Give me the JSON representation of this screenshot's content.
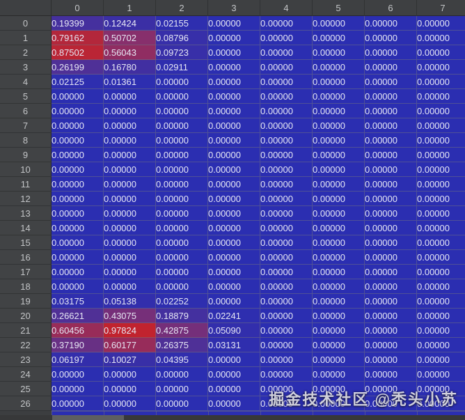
{
  "table": {
    "corner_label": "",
    "columns": [
      "0",
      "1",
      "2",
      "3",
      "4",
      "5",
      "6",
      "7"
    ],
    "decimals": 5,
    "rows": [
      {
        "index": "0",
        "values": [
          0.19399,
          0.12424,
          0.02155,
          0.0,
          0.0,
          0.0,
          0.0,
          0.0
        ]
      },
      {
        "index": "1",
        "values": [
          0.79162,
          0.50702,
          0.08796,
          0.0,
          0.0,
          0.0,
          0.0,
          0.0
        ]
      },
      {
        "index": "2",
        "values": [
          0.87502,
          0.56043,
          0.09723,
          0.0,
          0.0,
          0.0,
          0.0,
          0.0
        ]
      },
      {
        "index": "3",
        "values": [
          0.26199,
          0.1678,
          0.02911,
          0.0,
          0.0,
          0.0,
          0.0,
          0.0
        ]
      },
      {
        "index": "4",
        "values": [
          0.02125,
          0.01361,
          0.0,
          0.0,
          0.0,
          0.0,
          0.0,
          0.0
        ]
      },
      {
        "index": "5",
        "values": [
          0.0,
          0.0,
          0.0,
          0.0,
          0.0,
          0.0,
          0.0,
          0.0
        ]
      },
      {
        "index": "6",
        "values": [
          0.0,
          0.0,
          0.0,
          0.0,
          0.0,
          0.0,
          0.0,
          0.0
        ]
      },
      {
        "index": "7",
        "values": [
          0.0,
          0.0,
          0.0,
          0.0,
          0.0,
          0.0,
          0.0,
          0.0
        ]
      },
      {
        "index": "8",
        "values": [
          0.0,
          0.0,
          0.0,
          0.0,
          0.0,
          0.0,
          0.0,
          0.0
        ]
      },
      {
        "index": "9",
        "values": [
          0.0,
          0.0,
          0.0,
          0.0,
          0.0,
          0.0,
          0.0,
          0.0
        ]
      },
      {
        "index": "10",
        "values": [
          0.0,
          0.0,
          0.0,
          0.0,
          0.0,
          0.0,
          0.0,
          0.0
        ]
      },
      {
        "index": "11",
        "values": [
          0.0,
          0.0,
          0.0,
          0.0,
          0.0,
          0.0,
          0.0,
          0.0
        ]
      },
      {
        "index": "12",
        "values": [
          0.0,
          0.0,
          0.0,
          0.0,
          0.0,
          0.0,
          0.0,
          0.0
        ]
      },
      {
        "index": "13",
        "values": [
          0.0,
          0.0,
          0.0,
          0.0,
          0.0,
          0.0,
          0.0,
          0.0
        ]
      },
      {
        "index": "14",
        "values": [
          0.0,
          0.0,
          0.0,
          0.0,
          0.0,
          0.0,
          0.0,
          0.0
        ]
      },
      {
        "index": "15",
        "values": [
          0.0,
          0.0,
          0.0,
          0.0,
          0.0,
          0.0,
          0.0,
          0.0
        ]
      },
      {
        "index": "16",
        "values": [
          0.0,
          0.0,
          0.0,
          0.0,
          0.0,
          0.0,
          0.0,
          0.0
        ]
      },
      {
        "index": "17",
        "values": [
          0.0,
          0.0,
          0.0,
          0.0,
          0.0,
          0.0,
          0.0,
          0.0
        ]
      },
      {
        "index": "18",
        "values": [
          0.0,
          0.0,
          0.0,
          0.0,
          0.0,
          0.0,
          0.0,
          0.0
        ]
      },
      {
        "index": "19",
        "values": [
          0.03175,
          0.05138,
          0.02252,
          0.0,
          0.0,
          0.0,
          0.0,
          0.0
        ]
      },
      {
        "index": "20",
        "values": [
          0.26621,
          0.43075,
          0.18879,
          0.02241,
          0.0,
          0.0,
          0.0,
          0.0
        ]
      },
      {
        "index": "21",
        "values": [
          0.60456,
          0.97824,
          0.42875,
          0.0509,
          0.0,
          0.0,
          0.0,
          0.0
        ]
      },
      {
        "index": "22",
        "values": [
          0.3719,
          0.60177,
          0.26375,
          0.03131,
          0.0,
          0.0,
          0.0,
          0.0
        ]
      },
      {
        "index": "23",
        "values": [
          0.06197,
          0.10027,
          0.04395,
          0.0,
          0.0,
          0.0,
          0.0,
          0.0
        ]
      },
      {
        "index": "24",
        "values": [
          0.0,
          0.0,
          0.0,
          0.0,
          0.0,
          0.0,
          0.0,
          0.0
        ]
      },
      {
        "index": "25",
        "values": [
          0.0,
          0.0,
          0.0,
          0.0,
          0.0,
          0.0,
          0.0,
          0.0
        ]
      },
      {
        "index": "26",
        "values": [
          0.0,
          0.0,
          0.0,
          0.0,
          0.0,
          0.0,
          0.0,
          0.0
        ]
      }
    ]
  },
  "colormap": {
    "low_color": "#2b2eb1",
    "high_color": "#c3232c",
    "stops": [
      [
        0.0,
        "#2b2eb1"
      ],
      [
        0.25,
        "#4c3099"
      ],
      [
        0.5,
        "#862f6d"
      ],
      [
        0.75,
        "#b0283e"
      ],
      [
        1.0,
        "#c3232c"
      ]
    ]
  },
  "watermark": {
    "text": "掘金技术社区 @秃头小苏"
  }
}
